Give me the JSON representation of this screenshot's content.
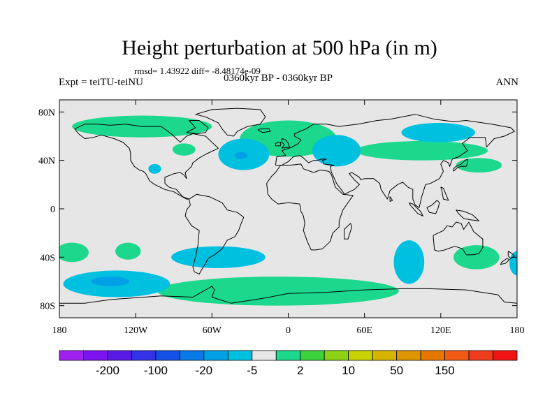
{
  "title": "Height perturbation at 500 hPa (in m)",
  "subtitle": "rmsd= 1.43922 diff= -8.48174e-09",
  "left_label": "Expt = teiTU-teiNU",
  "center_label": "0360kyr BP - 0360kyr BP",
  "right_label": "ANN",
  "map": {
    "projection": "cylindrical equidistant",
    "lon_range": [
      -180,
      180
    ],
    "lat_range": [
      -90,
      90
    ],
    "background_color": "#e6e6e6",
    "lat_ticks": [
      {
        "value": 80,
        "label": "80N"
      },
      {
        "value": 40,
        "label": "40N"
      },
      {
        "value": 0,
        "label": "0"
      },
      {
        "value": -40,
        "label": "40S"
      },
      {
        "value": -80,
        "label": "80S"
      }
    ],
    "lon_ticks": [
      {
        "value": -180,
        "label": "180"
      },
      {
        "value": -120,
        "label": "120W"
      },
      {
        "value": -60,
        "label": "60W"
      },
      {
        "value": 0,
        "label": "0"
      },
      {
        "value": 60,
        "label": "60E"
      },
      {
        "value": 120,
        "label": "120E"
      },
      {
        "value": 180,
        "label": "180"
      }
    ],
    "anomaly_regions": [
      {
        "sign": "positive",
        "range": "2 to 10",
        "color": "#1cd88c",
        "lon": -115,
        "lat": 68,
        "lon_radius": 55,
        "lat_radius": 9
      },
      {
        "sign": "positive",
        "range": "2 to 10",
        "color": "#1cd88c",
        "lon": 0,
        "lat": 58,
        "lon_radius": 38,
        "lat_radius": 15
      },
      {
        "sign": "positive",
        "range": "2 to 10",
        "color": "#1cd88c",
        "lon": -82,
        "lat": 49,
        "lon_radius": 9,
        "lat_radius": 5
      },
      {
        "sign": "positive",
        "range": "2 to 10",
        "color": "#1cd88c",
        "lon": 105,
        "lat": 48,
        "lon_radius": 52,
        "lat_radius": 8
      },
      {
        "sign": "positive",
        "range": "2 to 10",
        "color": "#1cd88c",
        "lon": 150,
        "lat": 36,
        "lon_radius": 18,
        "lat_radius": 6
      },
      {
        "sign": "positive",
        "range": "2 to 10",
        "color": "#1cd88c",
        "lon": -170,
        "lat": -36,
        "lon_radius": 13,
        "lat_radius": 8
      },
      {
        "sign": "positive",
        "range": "2 to 10",
        "color": "#1cd88c",
        "lon": -126,
        "lat": -35,
        "lon_radius": 10,
        "lat_radius": 7
      },
      {
        "sign": "positive",
        "range": "2 to 10",
        "color": "#1cd88c",
        "lon": -8,
        "lat": -68,
        "lon_radius": 95,
        "lat_radius": 12
      },
      {
        "sign": "positive",
        "range": "2 to 10",
        "color": "#1cd88c",
        "lon": 148,
        "lat": -40,
        "lon_radius": 18,
        "lat_radius": 10
      },
      {
        "sign": "negative",
        "range": "-5 to -2",
        "color": "#00c0e0",
        "lon": -35,
        "lat": 45,
        "lon_radius": 20,
        "lat_radius": 13
      },
      {
        "sign": "negative",
        "range": "-5 to -2",
        "color": "#00c0e0",
        "lon": -105,
        "lat": 33,
        "lon_radius": 5,
        "lat_radius": 4
      },
      {
        "sign": "negative",
        "range": "-5 to -2",
        "color": "#00c0e0",
        "lon": 38,
        "lat": 48,
        "lon_radius": 19,
        "lat_radius": 13
      },
      {
        "sign": "negative",
        "range": "-5 to -2",
        "color": "#00c0e0",
        "lon": 118,
        "lat": 63,
        "lon_radius": 29,
        "lat_radius": 8
      },
      {
        "sign": "negative",
        "range": "-5 to -2",
        "color": "#00c0e0",
        "lon": -135,
        "lat": -62,
        "lon_radius": 42,
        "lat_radius": 11
      },
      {
        "sign": "negative",
        "range": "-5 to -2",
        "color": "#00c0e0",
        "lon": -55,
        "lat": -40,
        "lon_radius": 37,
        "lat_radius": 9
      },
      {
        "sign": "negative",
        "range": "-5 to -2",
        "color": "#00c0e0",
        "lon": 95,
        "lat": -44,
        "lon_radius": 12,
        "lat_radius": 18
      },
      {
        "sign": "negative",
        "range": "-5 to -2",
        "color": "#00c0e0",
        "lon": 180,
        "lat": -45,
        "lon_radius": 6,
        "lat_radius": 10
      }
    ],
    "strong_negative_cores": [
      {
        "range": "-20 to -5",
        "color": "#00a0e6",
        "lon": -140,
        "lat": -60,
        "lon_radius": 15,
        "lat_radius": 4
      },
      {
        "range": "-20 to -5",
        "color": "#00a0e6",
        "lon": -37,
        "lat": 44,
        "lon_radius": 5,
        "lat_radius": 3
      }
    ]
  },
  "colorbar": {
    "colors": [
      "#a020f0",
      "#7c14f0",
      "#5a1ae6",
      "#3232e6",
      "#1450e6",
      "#0a78e6",
      "#00a0e6",
      "#00c0e0",
      "#e6e6e6",
      "#1cd88c",
      "#3cd23c",
      "#8cd214",
      "#c8d200",
      "#d6b400",
      "#de9600",
      "#e67800",
      "#f05a14",
      "#f03c1e",
      "#f01414"
    ],
    "label_positions": [
      1,
      3,
      5,
      7,
      9,
      11,
      13,
      15
    ],
    "labels": [
      "-200",
      "-100",
      "-20",
      "-5",
      "2",
      "10",
      "50",
      "150"
    ]
  },
  "coastlines": {
    "north_america": [
      [
        -168,
        66
      ],
      [
        -160,
        70
      ],
      [
        -150,
        70
      ],
      [
        -140,
        69
      ],
      [
        -128,
        70
      ],
      [
        -115,
        68
      ],
      [
        -100,
        68
      ],
      [
        -92,
        62
      ],
      [
        -85,
        55
      ],
      [
        -80,
        60
      ],
      [
        -75,
        62
      ],
      [
        -65,
        60
      ],
      [
        -60,
        55
      ],
      [
        -55,
        50
      ],
      [
        -65,
        45
      ],
      [
        -70,
        42
      ],
      [
        -75,
        38
      ],
      [
        -76,
        35
      ],
      [
        -81,
        30
      ],
      [
        -80,
        25
      ],
      [
        -82,
        28
      ],
      [
        -85,
        30
      ],
      [
        -90,
        29
      ],
      [
        -97,
        26
      ],
      [
        -97,
        21
      ],
      [
        -94,
        18
      ],
      [
        -88,
        16
      ],
      [
        -83,
        10
      ],
      [
        -78,
        8
      ],
      [
        -80,
        8
      ],
      [
        -85,
        11
      ],
      [
        -90,
        14
      ],
      [
        -97,
        16
      ],
      [
        -105,
        20
      ],
      [
        -109,
        23
      ],
      [
        -112,
        29
      ],
      [
        -114,
        31
      ],
      [
        -117,
        32
      ],
      [
        -121,
        35
      ],
      [
        -124,
        40
      ],
      [
        -124,
        46
      ],
      [
        -125,
        50
      ],
      [
        -130,
        55
      ],
      [
        -137,
        58
      ],
      [
        -147,
        61
      ],
      [
        -153,
        59
      ],
      [
        -160,
        58
      ],
      [
        -165,
        62
      ],
      [
        -168,
        66
      ]
    ],
    "south_america": [
      [
        -78,
        8
      ],
      [
        -72,
        12
      ],
      [
        -62,
        10
      ],
      [
        -52,
        5
      ],
      [
        -48,
        -1
      ],
      [
        -40,
        -3
      ],
      [
        -35,
        -7
      ],
      [
        -37,
        -12
      ],
      [
        -39,
        -18
      ],
      [
        -42,
        -23
      ],
      [
        -48,
        -26
      ],
      [
        -52,
        -33
      ],
      [
        -58,
        -38
      ],
      [
        -63,
        -41
      ],
      [
        -65,
        -45
      ],
      [
        -68,
        -50
      ],
      [
        -70,
        -54
      ],
      [
        -74,
        -52
      ],
      [
        -75,
        -48
      ],
      [
        -73,
        -40
      ],
      [
        -71,
        -30
      ],
      [
        -70,
        -18
      ],
      [
        -76,
        -14
      ],
      [
        -81,
        -6
      ],
      [
        -80,
        -1
      ],
      [
        -77,
        3
      ],
      [
        -78,
        8
      ]
    ],
    "europe_asia": [
      [
        -10,
        36
      ],
      [
        -9,
        43
      ],
      [
        -2,
        44
      ],
      [
        -5,
        48
      ],
      [
        3,
        51
      ],
      [
        8,
        54
      ],
      [
        10,
        57
      ],
      [
        5,
        60
      ],
      [
        5,
        62
      ],
      [
        14,
        66
      ],
      [
        20,
        70
      ],
      [
        30,
        70
      ],
      [
        40,
        68
      ],
      [
        55,
        70
      ],
      [
        70,
        73
      ],
      [
        80,
        74
      ],
      [
        100,
        78
      ],
      [
        115,
        74
      ],
      [
        130,
        72
      ],
      [
        140,
        73
      ],
      [
        160,
        70
      ],
      [
        175,
        67
      ],
      [
        178,
        64
      ],
      [
        170,
        60
      ],
      [
        162,
        58
      ],
      [
        156,
        51
      ],
      [
        155,
        59
      ],
      [
        143,
        59
      ],
      [
        137,
        54
      ],
      [
        141,
        48
      ],
      [
        134,
        43
      ],
      [
        129,
        41
      ],
      [
        127,
        35
      ],
      [
        126,
        38
      ],
      [
        122,
        40
      ],
      [
        120,
        37
      ],
      [
        122,
        31
      ],
      [
        119,
        25
      ],
      [
        112,
        21
      ],
      [
        108,
        20
      ],
      [
        105,
        10
      ],
      [
        103,
        1
      ],
      [
        100,
        3
      ],
      [
        98,
        8
      ],
      [
        98,
        16
      ],
      [
        94,
        18
      ],
      [
        90,
        22
      ],
      [
        86,
        20
      ],
      [
        80,
        15
      ],
      [
        78,
        8
      ],
      [
        73,
        16
      ],
      [
        72,
        21
      ],
      [
        67,
        25
      ],
      [
        60,
        25
      ],
      [
        57,
        24
      ],
      [
        56,
        26
      ],
      [
        50,
        30
      ],
      [
        48,
        29
      ],
      [
        52,
        24
      ],
      [
        56,
        20
      ],
      [
        52,
        16
      ],
      [
        44,
        12
      ],
      [
        43,
        14
      ],
      [
        38,
        21
      ],
      [
        35,
        28
      ],
      [
        34,
        30
      ],
      [
        33,
        35
      ],
      [
        36,
        36
      ],
      [
        28,
        37
      ],
      [
        27,
        40
      ],
      [
        30,
        41
      ],
      [
        26,
        41
      ],
      [
        23,
        40
      ],
      [
        20,
        40
      ],
      [
        16,
        38
      ],
      [
        12,
        42
      ],
      [
        9,
        44
      ],
      [
        4,
        43
      ],
      [
        0,
        39
      ],
      [
        -5,
        36
      ],
      [
        -10,
        36
      ]
    ],
    "africa": [
      [
        -17,
        21
      ],
      [
        -16,
        12
      ],
      [
        -13,
        8
      ],
      [
        -8,
        4
      ],
      [
        0,
        5
      ],
      [
        9,
        4
      ],
      [
        10,
        -2
      ],
      [
        12,
        -6
      ],
      [
        13,
        -12
      ],
      [
        12,
        -18
      ],
      [
        15,
        -27
      ],
      [
        18,
        -34
      ],
      [
        22,
        -34
      ],
      [
        27,
        -33
      ],
      [
        33,
        -27
      ],
      [
        35,
        -20
      ],
      [
        40,
        -15
      ],
      [
        40,
        -10
      ],
      [
        43,
        -1
      ],
      [
        51,
        11
      ],
      [
        43,
        12
      ],
      [
        37,
        18
      ],
      [
        34,
        28
      ],
      [
        32,
        31
      ],
      [
        25,
        32
      ],
      [
        20,
        30
      ],
      [
        12,
        33
      ],
      [
        10,
        37
      ],
      [
        1,
        36
      ],
      [
        -6,
        36
      ],
      [
        -10,
        30
      ],
      [
        -13,
        27
      ],
      [
        -17,
        21
      ]
    ],
    "australia": [
      [
        114,
        -22
      ],
      [
        115,
        -34
      ],
      [
        118,
        -35
      ],
      [
        123,
        -34
      ],
      [
        131,
        -31
      ],
      [
        137,
        -33
      ],
      [
        140,
        -38
      ],
      [
        145,
        -38
      ],
      [
        150,
        -37
      ],
      [
        153,
        -32
      ],
      [
        153,
        -25
      ],
      [
        146,
        -19
      ],
      [
        142,
        -11
      ],
      [
        138,
        -17
      ],
      [
        136,
        -12
      ],
      [
        132,
        -11
      ],
      [
        129,
        -15
      ],
      [
        125,
        -14
      ],
      [
        122,
        -18
      ],
      [
        114,
        -22
      ]
    ],
    "antarctica": [
      [
        -180,
        -78
      ],
      [
        -160,
        -78
      ],
      [
        -140,
        -75
      ],
      [
        -100,
        -72
      ],
      [
        -75,
        -73
      ],
      [
        -60,
        -64
      ],
      [
        -58,
        -67
      ],
      [
        -60,
        -73
      ],
      [
        -45,
        -78
      ],
      [
        -20,
        -74
      ],
      [
        0,
        -70
      ],
      [
        30,
        -69
      ],
      [
        60,
        -67
      ],
      [
        90,
        -66
      ],
      [
        110,
        -66
      ],
      [
        140,
        -67
      ],
      [
        165,
        -71
      ],
      [
        170,
        -77
      ],
      [
        180,
        -78
      ]
    ],
    "greenland": [
      [
        -73,
        78
      ],
      [
        -60,
        82
      ],
      [
        -40,
        83
      ],
      [
        -22,
        82
      ],
      [
        -18,
        76
      ],
      [
        -22,
        70
      ],
      [
        -32,
        68
      ],
      [
        -40,
        64
      ],
      [
        -43,
        60
      ],
      [
        -48,
        61
      ],
      [
        -52,
        66
      ],
      [
        -55,
        71
      ],
      [
        -65,
        76
      ],
      [
        -73,
        78
      ]
    ],
    "britain": [
      [
        -5,
        50
      ],
      [
        1,
        51
      ],
      [
        0,
        54
      ],
      [
        -2,
        57
      ],
      [
        -5,
        58
      ],
      [
        -5,
        55
      ],
      [
        -3,
        53
      ],
      [
        -5,
        50
      ]
    ],
    "ireland": [
      [
        -10,
        52
      ],
      [
        -6,
        52
      ],
      [
        -6,
        55
      ],
      [
        -8,
        55
      ],
      [
        -10,
        54
      ],
      [
        -10,
        52
      ]
    ],
    "japan": [
      [
        130,
        31
      ],
      [
        133,
        34
      ],
      [
        136,
        35
      ],
      [
        140,
        35
      ],
      [
        141,
        38
      ],
      [
        141,
        41
      ],
      [
        139,
        40
      ],
      [
        136,
        37
      ],
      [
        132,
        35
      ],
      [
        130,
        33
      ],
      [
        130,
        31
      ]
    ],
    "madagascar": [
      [
        44,
        -25
      ],
      [
        47,
        -25
      ],
      [
        50,
        -15
      ],
      [
        49,
        -12
      ],
      [
        44,
        -17
      ],
      [
        44,
        -25
      ]
    ],
    "new_zealand_north": [
      [
        173,
        -35
      ],
      [
        176,
        -37
      ],
      [
        178,
        -39
      ],
      [
        175,
        -41
      ],
      [
        173,
        -39
      ],
      [
        173,
        -35
      ]
    ],
    "new_zealand_south": [
      [
        172,
        -41
      ],
      [
        174,
        -42
      ],
      [
        171,
        -45
      ],
      [
        167,
        -46
      ],
      [
        168,
        -44
      ],
      [
        172,
        -41
      ]
    ],
    "borneo": [
      [
        109,
        1
      ],
      [
        113,
        3
      ],
      [
        117,
        7
      ],
      [
        119,
        5
      ],
      [
        118,
        1
      ],
      [
        116,
        -4
      ],
      [
        111,
        -3
      ],
      [
        109,
        1
      ]
    ],
    "sumatra": [
      [
        95,
        5
      ],
      [
        98,
        4
      ],
      [
        104,
        -2
      ],
      [
        106,
        -6
      ],
      [
        102,
        -4
      ],
      [
        96,
        3
      ],
      [
        95,
        5
      ]
    ],
    "new_guinea": [
      [
        132,
        -1
      ],
      [
        138,
        -2
      ],
      [
        145,
        -5
      ],
      [
        150,
        -10
      ],
      [
        143,
        -9
      ],
      [
        138,
        -8
      ],
      [
        134,
        -4
      ],
      [
        132,
        -1
      ]
    ],
    "iceland": [
      [
        -24,
        65
      ],
      [
        -22,
        66
      ],
      [
        -15,
        66
      ],
      [
        -14,
        64
      ],
      [
        -20,
        63
      ],
      [
        -24,
        65
      ]
    ],
    "baffin": [
      [
        -80,
        63
      ],
      [
        -73,
        67
      ],
      [
        -78,
        73
      ],
      [
        -70,
        73
      ],
      [
        -63,
        67
      ],
      [
        -65,
        63
      ],
      [
        -72,
        62
      ],
      [
        -80,
        63
      ]
    ],
    "philippines": [
      [
        120,
        18
      ],
      [
        122,
        17
      ],
      [
        124,
        12
      ],
      [
        126,
        7
      ],
      [
        122,
        8
      ],
      [
        121,
        14
      ],
      [
        120,
        18
      ]
    ],
    "sri_lanka": [
      [
        80,
        6
      ],
      [
        82,
        7
      ],
      [
        80,
        10
      ],
      [
        80,
        6
      ]
    ]
  }
}
